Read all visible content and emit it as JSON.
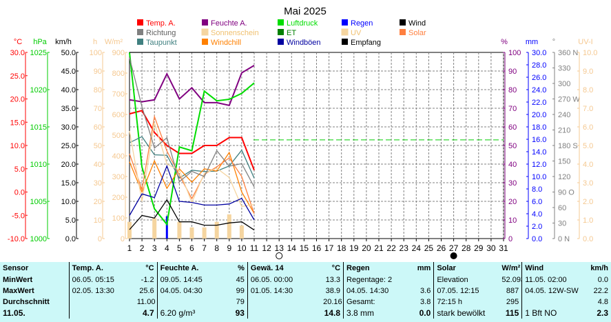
{
  "colors": {
    "temp": "#ff0000",
    "hum": "#800080",
    "pres": "#00dd00",
    "rain": "#0000ff",
    "wind": "#000000",
    "dir": "#808080",
    "sunshine": "#f5d5a0",
    "et": "#008000",
    "uv": "#f5d5a0",
    "solar": "#ff8040",
    "dew": "#408080",
    "chill": "#ff8000",
    "gust": "#0000a0",
    "rec": "#000000",
    "axis_temp": "#ff0000",
    "axis_pres": "#00cc00",
    "axis_wind": "#000000",
    "axis_h": "#f5c890",
    "axis_hum": "#800080",
    "axis_rain": "#0000ff",
    "axis_dir": "#808080",
    "axis_uv": "#f5c890",
    "table_bg": "#ccf8f8"
  },
  "chart_data": {
    "type": "line",
    "title": "Mai 2025",
    "x": [
      1,
      2,
      3,
      4,
      5,
      6,
      7,
      8,
      9,
      10,
      11
    ],
    "xlim": [
      1,
      31
    ],
    "x_ticks": [
      "1",
      "2",
      "3",
      "4",
      "5",
      "6",
      "7",
      "8",
      "9",
      "10",
      "11",
      "12",
      "13",
      "14",
      "15",
      "16",
      "17",
      "18",
      "19",
      "20",
      "21",
      "22",
      "23",
      "24",
      "25",
      "26",
      "27",
      "28",
      "29",
      "30",
      "31"
    ],
    "grid": true,
    "moon_markers": [
      {
        "day": 13,
        "phase": "full"
      },
      {
        "day": 27,
        "phase": "new"
      }
    ],
    "reference_line": {
      "axis": "hum",
      "value": 53
    },
    "axes": {
      "temp": {
        "unit": "°C",
        "range": [
          -10,
          30
        ],
        "ticks": [
          "30.0",
          "25.0",
          "20.0",
          "15.0",
          "10.0",
          "5.0",
          "0.0",
          "-5.0",
          "-10.0"
        ]
      },
      "pres": {
        "unit": "hPa",
        "range": [
          1000,
          1025
        ],
        "ticks": [
          "1025",
          "1020",
          "1015",
          "1010",
          "1005",
          "1000"
        ]
      },
      "wind": {
        "unit": "km/h",
        "range": [
          0,
          50
        ],
        "ticks": [
          "50.0",
          "45.0",
          "40.0",
          "35.0",
          "30.0",
          "25.0",
          "20.0",
          "15.0",
          "10.0",
          "5.0",
          "0.0"
        ]
      },
      "sunh": {
        "unit": "h",
        "range": [
          0,
          100
        ],
        "ticks": [
          "100",
          "90",
          "80",
          "70",
          "60",
          "50",
          "40",
          "30",
          "20",
          "10",
          "0"
        ]
      },
      "solar": {
        "unit": "W/m²",
        "range": [
          0,
          900
        ],
        "ticks": [
          "900",
          "800",
          "700",
          "600",
          "500",
          "400",
          "300",
          "200",
          "100",
          "0"
        ]
      },
      "hum": {
        "unit": "%",
        "range": [
          0,
          100
        ],
        "ticks": [
          "100",
          "90",
          "80",
          "70",
          "60",
          "50",
          "40",
          "30",
          "20",
          "10",
          "0"
        ]
      },
      "rain": {
        "unit": "mm",
        "range": [
          0,
          30
        ],
        "ticks": [
          "30.0",
          "28.0",
          "26.0",
          "24.0",
          "22.0",
          "20.0",
          "18.0",
          "16.0",
          "14.0",
          "12.0",
          "10.0",
          "8.0",
          "6.0",
          "4.0",
          "2.0",
          "0.0"
        ]
      },
      "dir": {
        "unit": "°",
        "range": [
          0,
          360
        ],
        "ticks": [
          "360 N",
          "330",
          "300",
          "270 W",
          "240",
          "210",
          "180 S",
          "150",
          "120",
          "90 O",
          "60",
          "30",
          "0 N"
        ]
      },
      "uv": {
        "unit": "UV-I",
        "range": [
          0,
          10
        ],
        "ticks": [
          "10.0",
          "9.0",
          "8.0",
          "7.0",
          "6.0",
          "5.0",
          "4.0",
          "3.0",
          "2.0",
          "1.0",
          "0.0"
        ]
      }
    },
    "legend": [
      {
        "label": "Temp. A.",
        "key": "temp"
      },
      {
        "label": "Feuchte A.",
        "key": "hum"
      },
      {
        "label": "Luftdruck",
        "key": "pres"
      },
      {
        "label": "Regen",
        "key": "rain"
      },
      {
        "label": "Wind",
        "key": "wind"
      },
      {
        "label": "Richtung",
        "key": "dir"
      },
      {
        "label": "Sonnenschein",
        "key": "sunshine"
      },
      {
        "label": "ET",
        "key": "et"
      },
      {
        "label": "UV",
        "key": "uv"
      },
      {
        "label": "Solar",
        "key": "solar"
      },
      {
        "label": "Taupunkt",
        "key": "dew"
      },
      {
        "label": "Windchill",
        "key": "chill"
      },
      {
        "label": "Windböen",
        "key": "gust"
      },
      {
        "label": "Empfang",
        "key": "rec"
      }
    ],
    "series": [
      {
        "name": "Temp. A.",
        "key": "temp",
        "axis": "temp",
        "values": [
          16.8,
          17.5,
          12.8,
          10.0,
          8.3,
          8.3,
          10.0,
          10.0,
          11.7,
          11.7,
          4.7
        ]
      },
      {
        "name": "Feuchte A.",
        "key": "hum",
        "axis": "hum",
        "values": [
          74.5,
          73.5,
          74.5,
          88.5,
          75.0,
          81.0,
          73.0,
          73.0,
          71.5,
          89.0,
          93.0
        ]
      },
      {
        "name": "Luftdruck",
        "key": "pres",
        "axis": "pres",
        "values": [
          1025.0,
          1009.6,
          1004.0,
          1001.9,
          1012.3,
          1011.8,
          1019.8,
          1018.5,
          1018.7,
          1019.5,
          1020.9
        ]
      },
      {
        "name": "Taupunkt",
        "key": "dew",
        "axis": "temp",
        "values": [
          10.6,
          11.9,
          8.0,
          7.9,
          3.0,
          4.7,
          4.4,
          4.5,
          5.6,
          9.0,
          3.0
        ]
      },
      {
        "name": "Windchill",
        "key": "chill",
        "axis": "temp",
        "values": [
          6.5,
          0.0,
          6.7,
          0.8,
          5.0,
          2.1,
          5.0,
          4.5,
          8.5,
          0.0,
          -4.6
        ]
      },
      {
        "name": "Solar",
        "key": "solar",
        "axis": "solar",
        "values": [
          410,
          237,
          590,
          423,
          307,
          193,
          310,
          347,
          390,
          300,
          120
        ]
      },
      {
        "name": "Sonnenschein",
        "key": "sunshine",
        "axis": "solar",
        "values": [
          520,
          180,
          560,
          360,
          330,
          175,
          315,
          340,
          295,
          155,
          165
        ]
      },
      {
        "name": "Richtung",
        "key": "dir",
        "axis": "dir",
        "values": [
          350,
          255,
          175,
          195,
          110,
          130,
          120,
          170,
          140,
          145,
          100
        ]
      },
      {
        "name": "Windböen",
        "key": "gust",
        "axis": "wind",
        "values": [
          6.2,
          12.0,
          11.0,
          19.5,
          10.0,
          9.7,
          9.0,
          9.0,
          9.3,
          10.8,
          5.0
        ]
      },
      {
        "name": "Wind",
        "key": "wind",
        "axis": "wind",
        "values": [
          2.4,
          6.2,
          5.5,
          10.4,
          4.5,
          4.5,
          3.6,
          3.6,
          4.2,
          4.5,
          2.3
        ]
      },
      {
        "name": "Empfang",
        "key": "rec",
        "axis": "hum",
        "values": [
          100,
          100,
          100,
          100,
          100,
          100,
          100,
          100,
          100,
          100,
          100
        ]
      }
    ],
    "bars": [
      {
        "name": "Regen",
        "key": "rain",
        "axis": "rain",
        "values": [
          0,
          0,
          0,
          3.6,
          0,
          0,
          0,
          0,
          0,
          0,
          0
        ]
      },
      {
        "name": "UV",
        "key": "uv",
        "axis": "uv",
        "values": [
          0.9,
          0.0,
          1.1,
          0.0,
          0.9,
          0.6,
          0.6,
          0.9,
          1.3,
          0.7,
          0.0
        ]
      }
    ]
  },
  "summary": {
    "headers": {
      "sensor": "Sensor",
      "temp": "Temp. A.",
      "temp_unit": "°C",
      "hum": "Feuchte A.",
      "hum_unit": "%",
      "gew": "Gewä. 14",
      "gew_unit": "°C",
      "rain": "Regen",
      "rain_unit": "mm",
      "solar": "Solar",
      "solar_unit": "W/m²",
      "wind": "Wind",
      "wind_unit": "km/h"
    },
    "rows": [
      {
        "label": "MinWert",
        "temp_t": "06.05.  05:15",
        "temp_v": "-1.2",
        "hum_t": "09.05.  14:45",
        "hum_v": "45",
        "gew_t": "06.05.  00:00",
        "gew_v": "13.3",
        "rain_t": "Regentage: 2",
        "rain_v": "",
        "solar_t": "Elevation",
        "solar_v": "52.093",
        "wind_t": "11.05.  02:00",
        "wind_v": "0.0"
      },
      {
        "label": "MaxWert",
        "temp_t": "02.05.  13:30",
        "temp_v": "25.6",
        "hum_t": "04.05.  04:30",
        "hum_v": "99",
        "gew_t": "01.05.  14:30",
        "gew_v": "38.9",
        "rain_t": "04.05.  14:30",
        "rain_v": "3.6",
        "solar_t": "07.05.  12:15",
        "solar_v": "887",
        "wind_t": "04.05.  12W-SW",
        "wind_v": "22.2"
      },
      {
        "label": "Durchschnitt",
        "temp_t": "",
        "temp_v": "11.00",
        "hum_t": "",
        "hum_v": "79",
        "gew_t": "",
        "gew_v": "20.16",
        "rain_t": "Gesamt:",
        "rain_v": "3.8",
        "solar_t": "72:15 h",
        "solar_v": "295",
        "wind_t": "",
        "wind_v": "4.8"
      },
      {
        "label": "11.05.",
        "temp_t": "",
        "temp_v": "4.7",
        "hum_t": "6.20 g/m³",
        "hum_v": "93",
        "gew_t": "",
        "gew_v": "14.8",
        "rain_t": "3.8 mm",
        "rain_v": "0.0",
        "solar_t": "stark bewölkt",
        "solar_v": "115",
        "wind_t": "1 Bft NO",
        "wind_v": "2.3"
      }
    ]
  }
}
